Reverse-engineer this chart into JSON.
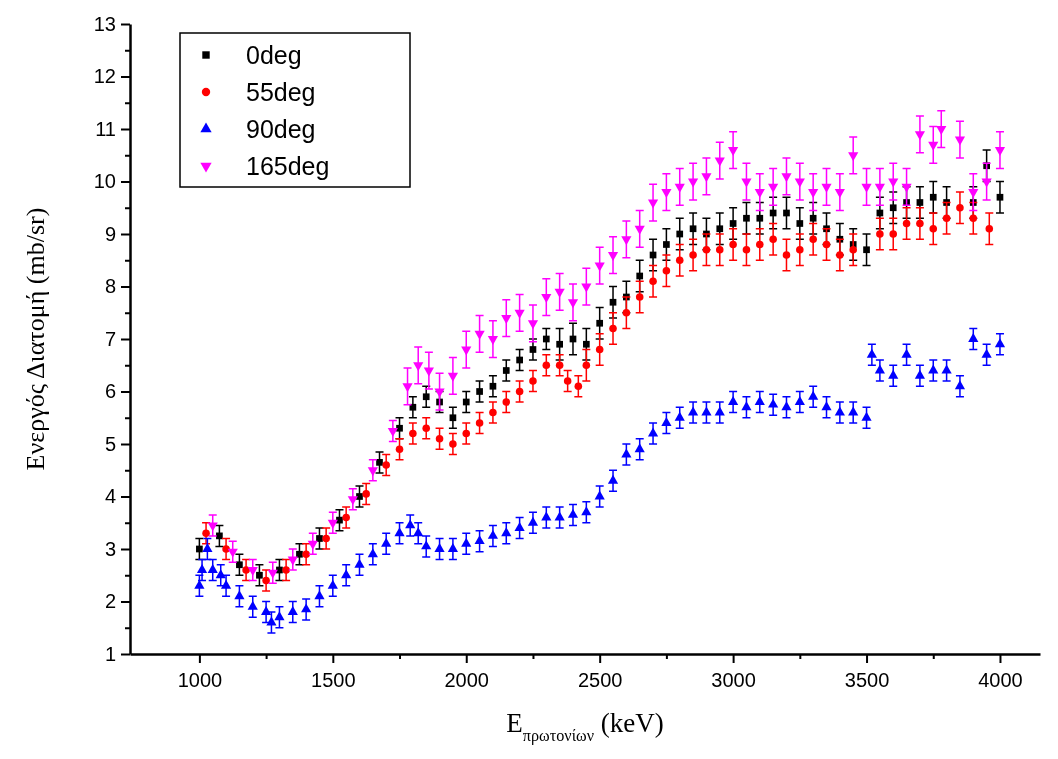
{
  "chart_data": {
    "type": "scatter",
    "xlabel": "E$_{πρωτονίων}$ (keV)",
    "ylabel": "Ενεργός Διατομή (mb/sr)",
    "xlim": [
      740,
      4150
    ],
    "ylim": [
      1,
      13
    ],
    "xticks": [
      1000,
      {
        "value": 1250,
        "label": null
      },
      1500,
      {
        "value": 1750,
        "label": null
      },
      2000,
      {
        "value": 2250,
        "label": null
      },
      2500,
      {
        "value": 2750,
        "label": null
      },
      3000,
      {
        "value": 3250,
        "label": null
      },
      3500,
      {
        "value": 3750,
        "label": null
      },
      4000
    ],
    "yticks": [
      1,
      {
        "value": 1.5,
        "label": null
      },
      2,
      {
        "value": 2.5,
        "label": null
      },
      3,
      {
        "value": 3.5,
        "label": null
      },
      4,
      {
        "value": 4.5,
        "label": null
      },
      5,
      {
        "value": 5.5,
        "label": null
      },
      6,
      {
        "value": 6.5,
        "label": null
      },
      7,
      {
        "value": 7.5,
        "label": null
      },
      8,
      {
        "value": 8.5,
        "label": null
      },
      9,
      {
        "value": 9.5,
        "label": null
      },
      10,
      {
        "value": 10.5,
        "label": null
      },
      11,
      {
        "value": 11.5,
        "label": null
      },
      12,
      {
        "value": 12.5,
        "label": null
      },
      13
    ],
    "legend": "top left",
    "grid": false,
    "series": [
      {
        "name": "0deg",
        "color": "#000000",
        "marker": "square",
        "x": [
          1000,
          1075,
          1150,
          1225,
          1300,
          1375,
          1450,
          1525,
          1600,
          1675,
          1750,
          1800,
          1850,
          1900,
          1950,
          2000,
          2050,
          2100,
          2150,
          2200,
          2250,
          2300,
          2350,
          2400,
          2450,
          2500,
          2550,
          2600,
          2650,
          2700,
          2750,
          2800,
          2850,
          2900,
          2950,
          3000,
          3050,
          3100,
          3150,
          3200,
          3250,
          3300,
          3350,
          3400,
          3450,
          3500,
          3550,
          3600,
          3650,
          3700,
          3750,
          3800,
          3900,
          3950,
          4000
        ],
        "values": [
          3.0,
          3.25,
          2.7,
          2.5,
          2.6,
          2.9,
          3.2,
          3.55,
          4.0,
          4.65,
          5.3,
          5.7,
          5.9,
          5.8,
          5.5,
          5.8,
          6.0,
          6.1,
          6.4,
          6.6,
          6.8,
          7.0,
          6.9,
          7.0,
          6.9,
          7.3,
          7.7,
          7.8,
          8.2,
          8.6,
          8.8,
          9.0,
          9.1,
          9.0,
          9.1,
          9.2,
          9.3,
          9.3,
          9.4,
          9.4,
          9.2,
          9.3,
          9.1,
          8.9,
          8.8,
          8.7,
          9.4,
          9.5,
          9.6,
          9.6,
          9.7,
          9.6,
          9.6,
          10.3,
          9.7
        ],
        "errors": [
          0.2,
          0.2,
          0.2,
          0.2,
          0.2,
          0.2,
          0.2,
          0.2,
          0.2,
          0.2,
          0.2,
          0.2,
          0.2,
          0.2,
          0.2,
          0.2,
          0.2,
          0.2,
          0.2,
          0.2,
          0.2,
          0.2,
          0.3,
          0.3,
          0.3,
          0.3,
          0.3,
          0.3,
          0.3,
          0.3,
          0.3,
          0.3,
          0.3,
          0.3,
          0.3,
          0.3,
          0.3,
          0.3,
          0.3,
          0.3,
          0.3,
          0.3,
          0.3,
          0.3,
          0.3,
          0.3,
          0.3,
          0.3,
          0.3,
          0.3,
          0.3,
          0.3,
          0.3,
          0.3,
          0.3
        ]
      },
      {
        "name": "55deg",
        "color": "#ff0000",
        "marker": "circle",
        "x": [
          1025,
          1100,
          1175,
          1250,
          1325,
          1400,
          1475,
          1550,
          1625,
          1700,
          1750,
          1800,
          1850,
          1900,
          1950,
          2000,
          2050,
          2100,
          2150,
          2200,
          2250,
          2300,
          2350,
          2380,
          2420,
          2450,
          2500,
          2550,
          2600,
          2650,
          2700,
          2750,
          2800,
          2850,
          2900,
          2950,
          3000,
          3050,
          3100,
          3150,
          3200,
          3250,
          3300,
          3350,
          3400,
          3450,
          3550,
          3600,
          3650,
          3700,
          3750,
          3800,
          3850,
          3900,
          3960
        ],
        "values": [
          3.3,
          3.0,
          2.6,
          2.4,
          2.6,
          2.9,
          3.2,
          3.6,
          4.05,
          4.6,
          4.9,
          5.2,
          5.3,
          5.1,
          5.0,
          5.2,
          5.4,
          5.6,
          5.8,
          6.0,
          6.2,
          6.5,
          6.5,
          6.2,
          6.1,
          6.5,
          6.8,
          7.2,
          7.5,
          7.8,
          8.1,
          8.3,
          8.5,
          8.6,
          8.7,
          8.7,
          8.8,
          8.7,
          8.8,
          8.9,
          8.6,
          8.7,
          8.9,
          8.8,
          8.6,
          8.7,
          9.0,
          9.0,
          9.2,
          9.2,
          9.1,
          9.3,
          9.5,
          9.3,
          9.1
        ],
        "errors": [
          0.2,
          0.2,
          0.2,
          0.2,
          0.2,
          0.2,
          0.2,
          0.2,
          0.2,
          0.2,
          0.2,
          0.2,
          0.2,
          0.2,
          0.2,
          0.2,
          0.2,
          0.2,
          0.2,
          0.2,
          0.2,
          0.2,
          0.2,
          0.2,
          0.2,
          0.3,
          0.3,
          0.3,
          0.3,
          0.3,
          0.3,
          0.3,
          0.3,
          0.3,
          0.3,
          0.3,
          0.3,
          0.3,
          0.3,
          0.3,
          0.3,
          0.3,
          0.3,
          0.3,
          0.3,
          0.3,
          0.3,
          0.3,
          0.3,
          0.3,
          0.3,
          0.3,
          0.3,
          0.3,
          0.3
        ]
      },
      {
        "name": "90deg",
        "color": "#0000ff",
        "marker": "triangle",
        "x": [
          1000,
          1010,
          1030,
          1050,
          1080,
          1100,
          1150,
          1200,
          1250,
          1270,
          1300,
          1350,
          1400,
          1450,
          1500,
          1550,
          1600,
          1650,
          1700,
          1750,
          1790,
          1820,
          1850,
          1900,
          1950,
          2000,
          2050,
          2100,
          2150,
          2200,
          2250,
          2300,
          2350,
          2400,
          2450,
          2500,
          2550,
          2600,
          2650,
          2700,
          2750,
          2800,
          2850,
          2900,
          2950,
          3000,
          3050,
          3100,
          3150,
          3200,
          3250,
          3300,
          3350,
          3400,
          3450,
          3500,
          3520,
          3550,
          3600,
          3650,
          3700,
          3750,
          3800,
          3850,
          3900,
          3950,
          4000
        ],
        "values": [
          2.3,
          2.6,
          3.0,
          2.6,
          2.5,
          2.3,
          2.1,
          1.9,
          1.8,
          1.6,
          1.7,
          1.8,
          1.85,
          2.1,
          2.3,
          2.5,
          2.7,
          2.9,
          3.1,
          3.3,
          3.45,
          3.3,
          3.05,
          3.0,
          3.0,
          3.1,
          3.15,
          3.25,
          3.3,
          3.4,
          3.5,
          3.6,
          3.6,
          3.65,
          3.7,
          4.0,
          4.3,
          4.8,
          4.9,
          5.2,
          5.4,
          5.5,
          5.6,
          5.6,
          5.6,
          5.8,
          5.7,
          5.8,
          5.75,
          5.7,
          5.8,
          5.9,
          5.7,
          5.6,
          5.6,
          5.5,
          6.7,
          6.4,
          6.3,
          6.7,
          6.3,
          6.4,
          6.4,
          6.1,
          7.0,
          6.7,
          6.9
        ],
        "errors": [
          0.2,
          0.2,
          0.2,
          0.2,
          0.2,
          0.2,
          0.2,
          0.2,
          0.2,
          0.2,
          0.2,
          0.2,
          0.2,
          0.2,
          0.2,
          0.2,
          0.2,
          0.2,
          0.2,
          0.2,
          0.2,
          0.2,
          0.2,
          0.2,
          0.2,
          0.2,
          0.2,
          0.2,
          0.2,
          0.2,
          0.2,
          0.2,
          0.2,
          0.2,
          0.2,
          0.2,
          0.2,
          0.2,
          0.2,
          0.2,
          0.2,
          0.2,
          0.2,
          0.2,
          0.2,
          0.2,
          0.2,
          0.2,
          0.2,
          0.2,
          0.2,
          0.2,
          0.2,
          0.2,
          0.2,
          0.2,
          0.2,
          0.2,
          0.2,
          0.2,
          0.2,
          0.2,
          0.2,
          0.2,
          0.2,
          0.2,
          0.2
        ]
      },
      {
        "name": "165deg",
        "color": "#ff00ff",
        "marker": "triangle-down",
        "x": [
          1050,
          1125,
          1200,
          1275,
          1350,
          1425,
          1500,
          1575,
          1650,
          1725,
          1780,
          1820,
          1860,
          1900,
          1950,
          2000,
          2050,
          2100,
          2150,
          2200,
          2250,
          2300,
          2350,
          2400,
          2450,
          2500,
          2550,
          2600,
          2650,
          2700,
          2750,
          2800,
          2850,
          2900,
          2950,
          3000,
          3050,
          3100,
          3150,
          3200,
          3250,
          3300,
          3350,
          3400,
          3450,
          3500,
          3550,
          3600,
          3650,
          3700,
          3750,
          3780,
          3850,
          3900,
          3950,
          4000
        ],
        "values": [
          3.45,
          2.95,
          2.6,
          2.55,
          2.8,
          3.1,
          3.5,
          3.95,
          4.5,
          5.25,
          6.1,
          6.5,
          6.4,
          6.0,
          6.3,
          6.8,
          7.1,
          7.0,
          7.4,
          7.5,
          7.3,
          7.8,
          7.9,
          7.7,
          8.0,
          8.4,
          8.6,
          8.9,
          9.1,
          9.6,
          9.8,
          9.9,
          10.0,
          10.1,
          10.4,
          10.6,
          10.0,
          9.8,
          9.9,
          10.1,
          10.0,
          9.8,
          9.9,
          9.8,
          10.5,
          9.9,
          9.9,
          10.0,
          9.9,
          10.9,
          10.7,
          11.0,
          10.8,
          9.8,
          10.0,
          10.6
        ],
        "errors": [
          0.2,
          0.2,
          0.2,
          0.2,
          0.2,
          0.2,
          0.2,
          0.2,
          0.2,
          0.2,
          0.35,
          0.35,
          0.35,
          0.35,
          0.35,
          0.35,
          0.35,
          0.35,
          0.35,
          0.35,
          0.35,
          0.35,
          0.35,
          0.35,
          0.35,
          0.35,
          0.35,
          0.35,
          0.35,
          0.35,
          0.35,
          0.35,
          0.35,
          0.35,
          0.35,
          0.35,
          0.35,
          0.35,
          0.35,
          0.35,
          0.35,
          0.35,
          0.35,
          0.35,
          0.35,
          0.35,
          0.35,
          0.35,
          0.35,
          0.35,
          0.35,
          0.35,
          0.35,
          0.35,
          0.35,
          0.35
        ]
      }
    ]
  }
}
